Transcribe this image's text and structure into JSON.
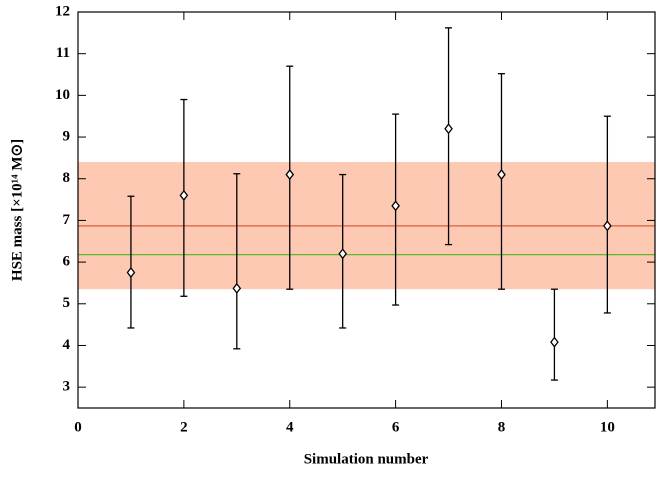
{
  "chart_data": {
    "type": "scatter",
    "xlabel": "Simulation number",
    "ylabel": "HSE mass [×10¹⁴ M⊙]",
    "x": [
      1,
      2,
      3,
      4,
      5,
      6,
      7,
      8,
      9,
      10
    ],
    "values": [
      5.75,
      7.6,
      5.37,
      8.1,
      6.2,
      7.35,
      9.2,
      8.1,
      4.08,
      6.87
    ],
    "lower": [
      4.42,
      5.18,
      3.92,
      5.35,
      4.42,
      4.97,
      6.42,
      5.35,
      3.17,
      4.78
    ],
    "upper": [
      7.58,
      9.9,
      8.12,
      10.7,
      8.1,
      9.55,
      11.62,
      10.52,
      5.35,
      9.5
    ],
    "color": "#000000",
    "band": [
      5.35,
      8.4
    ],
    "band_color": "#fdc9b3",
    "hlines": [
      {
        "value": 6.87,
        "color": "#d9603b"
      },
      {
        "value": 6.18,
        "color": "#5cb82e"
      }
    ],
    "xlim": [
      0,
      10.9
    ],
    "xticks": [
      0,
      2,
      4,
      6,
      8,
      10
    ],
    "ylim": [
      2.5,
      12
    ],
    "yticks": [
      3,
      4,
      5,
      6,
      7,
      8,
      9,
      10,
      11,
      12
    ]
  }
}
